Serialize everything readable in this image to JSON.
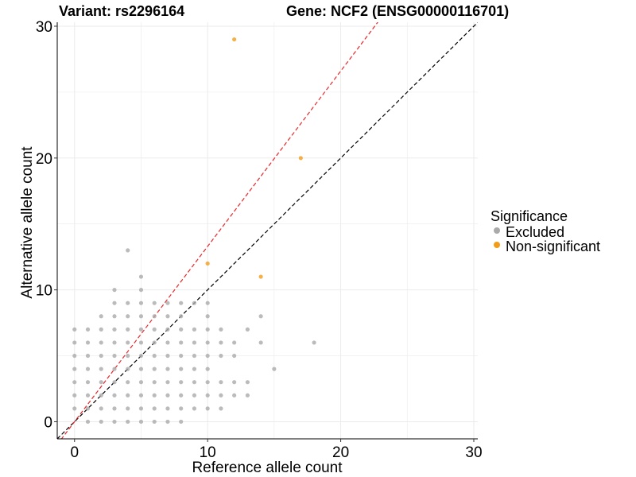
{
  "chart_data": {
    "type": "scatter",
    "title_left": "Variant: rs2296164",
    "title_right": "Gene: NCF2 (ENSG00000116701)",
    "xlabel": "Reference allele count",
    "ylabel": "Alternative allele count",
    "xlim": [
      -1.3,
      30.3
    ],
    "ylim": [
      -1.3,
      30.3
    ],
    "x_ticks": [
      0,
      10,
      20,
      30
    ],
    "y_ticks": [
      0,
      10,
      20,
      30
    ],
    "grid": true,
    "legend": {
      "title": "Significance",
      "placement": "right",
      "entries": [
        {
          "label": "Excluded",
          "color": "#aaaaaa"
        },
        {
          "label": "Non-significant",
          "color": "#f39c1a"
        }
      ]
    },
    "reference_lines": [
      {
        "slope": 1,
        "intercept": 0,
        "color": "#000000",
        "style": "dashed"
      },
      {
        "slope": 1.33,
        "intercept": 0,
        "color": "#e8262a",
        "style": "dashed"
      }
    ],
    "series": [
      {
        "name": "Excluded",
        "color": "#aaaaaa",
        "points": [
          [
            0,
            1
          ],
          [
            0,
            2
          ],
          [
            0,
            3
          ],
          [
            0,
            4
          ],
          [
            0,
            5
          ],
          [
            0,
            6
          ],
          [
            0,
            7
          ],
          [
            1,
            0
          ],
          [
            1,
            1
          ],
          [
            1,
            2
          ],
          [
            1,
            3
          ],
          [
            1,
            4
          ],
          [
            1,
            5
          ],
          [
            1,
            6
          ],
          [
            1,
            7
          ],
          [
            2,
            0
          ],
          [
            2,
            1
          ],
          [
            2,
            2
          ],
          [
            2,
            3
          ],
          [
            2,
            4
          ],
          [
            2,
            5
          ],
          [
            2,
            6
          ],
          [
            2,
            7
          ],
          [
            2,
            8
          ],
          [
            3,
            0
          ],
          [
            3,
            1
          ],
          [
            3,
            2
          ],
          [
            3,
            3
          ],
          [
            3,
            4
          ],
          [
            3,
            5
          ],
          [
            3,
            6
          ],
          [
            3,
            7
          ],
          [
            3,
            8
          ],
          [
            3,
            9
          ],
          [
            3,
            10
          ],
          [
            4,
            0
          ],
          [
            4,
            1
          ],
          [
            4,
            2
          ],
          [
            4,
            3
          ],
          [
            4,
            4
          ],
          [
            4,
            5
          ],
          [
            4,
            6
          ],
          [
            4,
            7
          ],
          [
            4,
            8
          ],
          [
            4,
            9
          ],
          [
            4,
            13
          ],
          [
            5,
            0
          ],
          [
            5,
            1
          ],
          [
            5,
            2
          ],
          [
            5,
            3
          ],
          [
            5,
            4
          ],
          [
            5,
            5
          ],
          [
            5,
            6
          ],
          [
            5,
            7
          ],
          [
            5,
            8
          ],
          [
            5,
            9
          ],
          [
            5,
            10
          ],
          [
            5,
            11
          ],
          [
            6,
            0
          ],
          [
            6,
            1
          ],
          [
            6,
            2
          ],
          [
            6,
            3
          ],
          [
            6,
            4
          ],
          [
            6,
            5
          ],
          [
            6,
            6
          ],
          [
            6,
            7
          ],
          [
            6,
            8
          ],
          [
            6,
            9
          ],
          [
            7,
            0
          ],
          [
            7,
            1
          ],
          [
            7,
            2
          ],
          [
            7,
            3
          ],
          [
            7,
            4
          ],
          [
            7,
            5
          ],
          [
            7,
            6
          ],
          [
            7,
            7
          ],
          [
            7,
            8
          ],
          [
            7,
            9
          ],
          [
            8,
            0
          ],
          [
            8,
            1
          ],
          [
            8,
            2
          ],
          [
            8,
            3
          ],
          [
            8,
            4
          ],
          [
            8,
            5
          ],
          [
            8,
            6
          ],
          [
            8,
            7
          ],
          [
            8,
            8
          ],
          [
            8,
            9
          ],
          [
            9,
            1
          ],
          [
            9,
            2
          ],
          [
            9,
            3
          ],
          [
            9,
            4
          ],
          [
            9,
            5
          ],
          [
            9,
            6
          ],
          [
            9,
            7
          ],
          [
            9,
            9
          ],
          [
            10,
            1
          ],
          [
            10,
            2
          ],
          [
            10,
            3
          ],
          [
            10,
            4
          ],
          [
            10,
            5
          ],
          [
            10,
            6
          ],
          [
            10,
            7
          ],
          [
            10,
            8
          ],
          [
            10,
            9
          ],
          [
            11,
            1
          ],
          [
            11,
            2
          ],
          [
            11,
            3
          ],
          [
            11,
            5
          ],
          [
            11,
            6
          ],
          [
            11,
            7
          ],
          [
            12,
            2
          ],
          [
            12,
            3
          ],
          [
            12,
            5
          ],
          [
            12,
            6
          ],
          [
            13,
            2
          ],
          [
            13,
            3
          ],
          [
            13,
            7
          ],
          [
            14,
            6
          ],
          [
            14,
            8
          ],
          [
            15,
            4
          ],
          [
            18,
            6
          ]
        ]
      },
      {
        "name": "Non-significant",
        "color": "#f39c1a",
        "points": [
          [
            12,
            29
          ],
          [
            17,
            20
          ],
          [
            10,
            12
          ],
          [
            14,
            11
          ]
        ]
      }
    ]
  }
}
